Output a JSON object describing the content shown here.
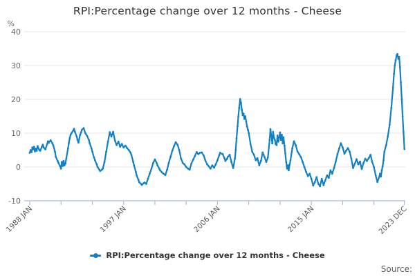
{
  "title": "RPI:Percentage change over 12 months - Cheese",
  "legend": {
    "label": "RPI:Percentage change over 12 months - Cheese"
  },
  "source_label": "Source:",
  "colors": {
    "line": "#1380c4",
    "grid": "#e6e6e6",
    "axis": "#aebcd8",
    "title_text": "#333333",
    "tick_text": "#666666",
    "x_tick_text": "#595959",
    "source_text": "#5f5f5f"
  },
  "chart_data": {
    "type": "line",
    "title": "RPI:Percentage change over 12 months - Cheese",
    "xlabel": "",
    "ylabel": "%",
    "ylim": [
      -10,
      40
    ],
    "yticks": [
      40,
      30,
      20,
      10,
      0,
      -10
    ],
    "grid": true,
    "legend_position": "bottom",
    "x_range_labels": [
      "1988 JAN",
      "2023 DEC"
    ],
    "xticks": [
      {
        "t": 1988.0,
        "label": "1988 JAN"
      },
      {
        "t": 1991.0,
        "label": ""
      },
      {
        "t": 1994.0,
        "label": ""
      },
      {
        "t": 1997.0,
        "label": "1997 JAN"
      },
      {
        "t": 2000.0,
        "label": ""
      },
      {
        "t": 2003.0,
        "label": ""
      },
      {
        "t": 2006.0,
        "label": "2006 JAN"
      },
      {
        "t": 2009.0,
        "label": ""
      },
      {
        "t": 2012.0,
        "label": ""
      },
      {
        "t": 2015.0,
        "label": "2015 JAN"
      },
      {
        "t": 2018.0,
        "label": ""
      },
      {
        "t": 2021.0,
        "label": ""
      },
      {
        "t": 2023.917,
        "label": "2023 DEC"
      }
    ],
    "series": [
      {
        "name": "RPI:Percentage change over 12 months - Cheese",
        "marker": "circle",
        "points": [
          [
            1988.0,
            4.2
          ],
          [
            1988.08,
            5.0
          ],
          [
            1988.17,
            4.4
          ],
          [
            1988.25,
            5.8
          ],
          [
            1988.33,
            5.2
          ],
          [
            1988.42,
            6.0
          ],
          [
            1988.5,
            4.6
          ],
          [
            1988.58,
            5.4
          ],
          [
            1988.67,
            4.8
          ],
          [
            1988.75,
            6.2
          ],
          [
            1988.83,
            5.6
          ],
          [
            1988.92,
            5.0
          ],
          [
            1989.0,
            4.8
          ],
          [
            1989.17,
            6.0
          ],
          [
            1989.25,
            6.6
          ],
          [
            1989.33,
            5.8
          ],
          [
            1989.5,
            5.2
          ],
          [
            1989.67,
            6.8
          ],
          [
            1989.75,
            7.6
          ],
          [
            1989.83,
            7.2
          ],
          [
            1990.0,
            7.9
          ],
          [
            1990.17,
            7.0
          ],
          [
            1990.25,
            6.5
          ],
          [
            1990.42,
            4.5
          ],
          [
            1990.5,
            3.0
          ],
          [
            1990.67,
            1.8
          ],
          [
            1990.75,
            1.2
          ],
          [
            1990.92,
            0.2
          ],
          [
            1991.0,
            -0.5
          ],
          [
            1991.08,
            1.5
          ],
          [
            1991.17,
            0.3
          ],
          [
            1991.25,
            1.8
          ],
          [
            1991.33,
            0.5
          ],
          [
            1991.42,
            1.0
          ],
          [
            1991.5,
            2.5
          ],
          [
            1991.67,
            5.5
          ],
          [
            1991.75,
            7.0
          ],
          [
            1991.83,
            8.5
          ],
          [
            1991.92,
            9.5
          ],
          [
            1992.0,
            10.0
          ],
          [
            1992.17,
            10.8
          ],
          [
            1992.25,
            11.3
          ],
          [
            1992.33,
            10.4
          ],
          [
            1992.5,
            9.0
          ],
          [
            1992.58,
            8.0
          ],
          [
            1992.67,
            7.2
          ],
          [
            1992.83,
            9.5
          ],
          [
            1992.92,
            10.2
          ],
          [
            1993.0,
            11.0
          ],
          [
            1993.17,
            11.5
          ],
          [
            1993.33,
            10.0
          ],
          [
            1993.5,
            9.2
          ],
          [
            1993.67,
            8.0
          ],
          [
            1993.75,
            7.0
          ],
          [
            1993.92,
            5.5
          ],
          [
            1994.0,
            4.5
          ],
          [
            1994.17,
            2.8
          ],
          [
            1994.25,
            2.0
          ],
          [
            1994.42,
            0.8
          ],
          [
            1994.5,
            0.0
          ],
          [
            1994.67,
            -0.8
          ],
          [
            1994.75,
            -1.2
          ],
          [
            1994.92,
            -0.8
          ],
          [
            1995.0,
            -0.5
          ],
          [
            1995.17,
            1.5
          ],
          [
            1995.33,
            4.5
          ],
          [
            1995.5,
            7.5
          ],
          [
            1995.67,
            10.3
          ],
          [
            1995.83,
            9.0
          ],
          [
            1996.0,
            10.4
          ],
          [
            1996.17,
            7.8
          ],
          [
            1996.33,
            6.5
          ],
          [
            1996.5,
            7.5
          ],
          [
            1996.67,
            6.0
          ],
          [
            1996.83,
            6.8
          ],
          [
            1997.0,
            5.8
          ],
          [
            1997.17,
            6.3
          ],
          [
            1997.33,
            5.6
          ],
          [
            1997.5,
            5.0
          ],
          [
            1997.67,
            4.2
          ],
          [
            1997.75,
            3.5
          ],
          [
            1997.92,
            1.5
          ],
          [
            1998.0,
            0.5
          ],
          [
            1998.17,
            -1.5
          ],
          [
            1998.25,
            -2.5
          ],
          [
            1998.42,
            -3.8
          ],
          [
            1998.5,
            -4.5
          ],
          [
            1998.67,
            -5.0
          ],
          [
            1998.75,
            -5.3
          ],
          [
            1998.92,
            -4.8
          ],
          [
            1999.0,
            -4.6
          ],
          [
            1999.17,
            -5.0
          ],
          [
            1999.33,
            -3.5
          ],
          [
            1999.5,
            -2.0
          ],
          [
            1999.67,
            -0.5
          ],
          [
            1999.83,
            1.2
          ],
          [
            2000.0,
            2.2
          ],
          [
            2000.17,
            1.2
          ],
          [
            2000.25,
            0.5
          ],
          [
            2000.42,
            -0.5
          ],
          [
            2000.5,
            -1.0
          ],
          [
            2000.67,
            -1.6
          ],
          [
            2000.83,
            -2.0
          ],
          [
            2001.0,
            -2.4
          ],
          [
            2001.17,
            -0.8
          ],
          [
            2001.33,
            1.2
          ],
          [
            2001.5,
            3.0
          ],
          [
            2001.67,
            4.8
          ],
          [
            2001.83,
            6.2
          ],
          [
            2002.0,
            7.3
          ],
          [
            2002.17,
            6.6
          ],
          [
            2002.33,
            5.0
          ],
          [
            2002.5,
            2.5
          ],
          [
            2002.67,
            1.2
          ],
          [
            2002.83,
            0.8
          ],
          [
            2003.0,
            0.0
          ],
          [
            2003.17,
            -0.5
          ],
          [
            2003.33,
            -0.8
          ],
          [
            2003.5,
            1.0
          ],
          [
            2003.67,
            2.2
          ],
          [
            2003.83,
            3.2
          ],
          [
            2004.0,
            4.4
          ],
          [
            2004.17,
            3.8
          ],
          [
            2004.33,
            4.2
          ],
          [
            2004.5,
            4.3
          ],
          [
            2004.67,
            3.4
          ],
          [
            2004.83,
            2.0
          ],
          [
            2005.0,
            0.8
          ],
          [
            2005.17,
            0.2
          ],
          [
            2005.33,
            -0.5
          ],
          [
            2005.5,
            0.5
          ],
          [
            2005.67,
            -0.2
          ],
          [
            2005.83,
            0.8
          ],
          [
            2006.0,
            2.0
          ],
          [
            2006.17,
            3.5
          ],
          [
            2006.25,
            4.2
          ],
          [
            2006.42,
            3.9
          ],
          [
            2006.5,
            3.8
          ],
          [
            2006.67,
            2.6
          ],
          [
            2006.75,
            1.8
          ],
          [
            2006.92,
            2.4
          ],
          [
            2007.0,
            3.0
          ],
          [
            2007.17,
            3.6
          ],
          [
            2007.33,
            1.5
          ],
          [
            2007.5,
            -0.3
          ],
          [
            2007.67,
            2.5
          ],
          [
            2007.75,
            5.0
          ],
          [
            2007.83,
            8.5
          ],
          [
            2007.92,
            12.0
          ],
          [
            2008.0,
            15.0
          ],
          [
            2008.08,
            17.5
          ],
          [
            2008.17,
            20.1
          ],
          [
            2008.25,
            19.0
          ],
          [
            2008.33,
            17.0
          ],
          [
            2008.42,
            15.3
          ],
          [
            2008.5,
            15.8
          ],
          [
            2008.58,
            14.2
          ],
          [
            2008.67,
            15.0
          ],
          [
            2008.75,
            13.5
          ],
          [
            2008.83,
            12.0
          ],
          [
            2008.92,
            11.0
          ],
          [
            2009.0,
            10.0
          ],
          [
            2009.17,
            6.8
          ],
          [
            2009.33,
            4.5
          ],
          [
            2009.5,
            3.6
          ],
          [
            2009.67,
            2.0
          ],
          [
            2009.83,
            2.6
          ],
          [
            2010.0,
            0.5
          ],
          [
            2010.17,
            1.8
          ],
          [
            2010.33,
            4.3
          ],
          [
            2010.5,
            3.0
          ],
          [
            2010.67,
            1.5
          ],
          [
            2010.83,
            2.8
          ],
          [
            2011.0,
            8.0
          ],
          [
            2011.08,
            11.2
          ],
          [
            2011.17,
            9.0
          ],
          [
            2011.25,
            7.0
          ],
          [
            2011.33,
            10.4
          ],
          [
            2011.42,
            8.6
          ],
          [
            2011.5,
            8.0
          ],
          [
            2011.58,
            6.8
          ],
          [
            2011.67,
            6.5
          ],
          [
            2011.75,
            9.3
          ],
          [
            2011.83,
            7.5
          ],
          [
            2011.92,
            8.8
          ],
          [
            2012.0,
            10.2
          ],
          [
            2012.08,
            8.0
          ],
          [
            2012.17,
            9.5
          ],
          [
            2012.25,
            7.0
          ],
          [
            2012.33,
            8.8
          ],
          [
            2012.42,
            6.3
          ],
          [
            2012.5,
            4.0
          ],
          [
            2012.58,
            1.5
          ],
          [
            2012.67,
            -0.5
          ],
          [
            2012.75,
            0.5
          ],
          [
            2012.83,
            -1.0
          ],
          [
            2012.92,
            0.8
          ],
          [
            2013.0,
            2.0
          ],
          [
            2013.17,
            5.5
          ],
          [
            2013.33,
            7.6
          ],
          [
            2013.5,
            6.5
          ],
          [
            2013.67,
            4.6
          ],
          [
            2013.83,
            3.8
          ],
          [
            2014.0,
            2.9
          ],
          [
            2014.17,
            1.5
          ],
          [
            2014.33,
            0.0
          ],
          [
            2014.5,
            -1.5
          ],
          [
            2014.67,
            -2.7
          ],
          [
            2014.83,
            -2.0
          ],
          [
            2015.0,
            -3.5
          ],
          [
            2015.17,
            -5.5
          ],
          [
            2015.33,
            -4.5
          ],
          [
            2015.5,
            -3.0
          ],
          [
            2015.67,
            -5.0
          ],
          [
            2015.83,
            -5.7
          ],
          [
            2016.0,
            -3.5
          ],
          [
            2016.17,
            -5.4
          ],
          [
            2016.33,
            -4.0
          ],
          [
            2016.5,
            -2.5
          ],
          [
            2016.67,
            -3.2
          ],
          [
            2016.83,
            -1.0
          ],
          [
            2017.0,
            -2.0
          ],
          [
            2017.17,
            -0.3
          ],
          [
            2017.33,
            1.5
          ],
          [
            2017.5,
            3.8
          ],
          [
            2017.67,
            5.5
          ],
          [
            2017.83,
            7.0
          ],
          [
            2018.0,
            5.8
          ],
          [
            2018.17,
            3.9
          ],
          [
            2018.33,
            4.8
          ],
          [
            2018.5,
            5.6
          ],
          [
            2018.67,
            4.5
          ],
          [
            2018.83,
            2.5
          ],
          [
            2019.0,
            -0.3
          ],
          [
            2019.17,
            1.0
          ],
          [
            2019.33,
            2.3
          ],
          [
            2019.5,
            0.8
          ],
          [
            2019.67,
            1.6
          ],
          [
            2019.83,
            -0.6
          ],
          [
            2020.0,
            1.2
          ],
          [
            2020.17,
            2.4
          ],
          [
            2020.33,
            1.8
          ],
          [
            2020.5,
            2.6
          ],
          [
            2020.67,
            3.6
          ],
          [
            2020.83,
            1.5
          ],
          [
            2021.0,
            0.0
          ],
          [
            2021.17,
            -2.5
          ],
          [
            2021.33,
            -4.4
          ],
          [
            2021.5,
            -3.0
          ],
          [
            2021.58,
            -2.0
          ],
          [
            2021.67,
            -2.8
          ],
          [
            2021.75,
            -1.0
          ],
          [
            2021.83,
            0.2
          ],
          [
            2021.92,
            2.0
          ],
          [
            2022.0,
            4.5
          ],
          [
            2022.17,
            6.5
          ],
          [
            2022.33,
            9.0
          ],
          [
            2022.5,
            12.5
          ],
          [
            2022.67,
            17.5
          ],
          [
            2022.83,
            23.5
          ],
          [
            2022.92,
            27.5
          ],
          [
            2023.0,
            30.0
          ],
          [
            2023.08,
            31.5
          ],
          [
            2023.17,
            33.0
          ],
          [
            2023.25,
            33.4
          ],
          [
            2023.33,
            32.0
          ],
          [
            2023.42,
            32.6
          ],
          [
            2023.5,
            29.5
          ],
          [
            2023.58,
            25.0
          ],
          [
            2023.67,
            20.0
          ],
          [
            2023.75,
            15.0
          ],
          [
            2023.83,
            10.5
          ],
          [
            2023.92,
            5.3
          ]
        ]
      }
    ]
  }
}
